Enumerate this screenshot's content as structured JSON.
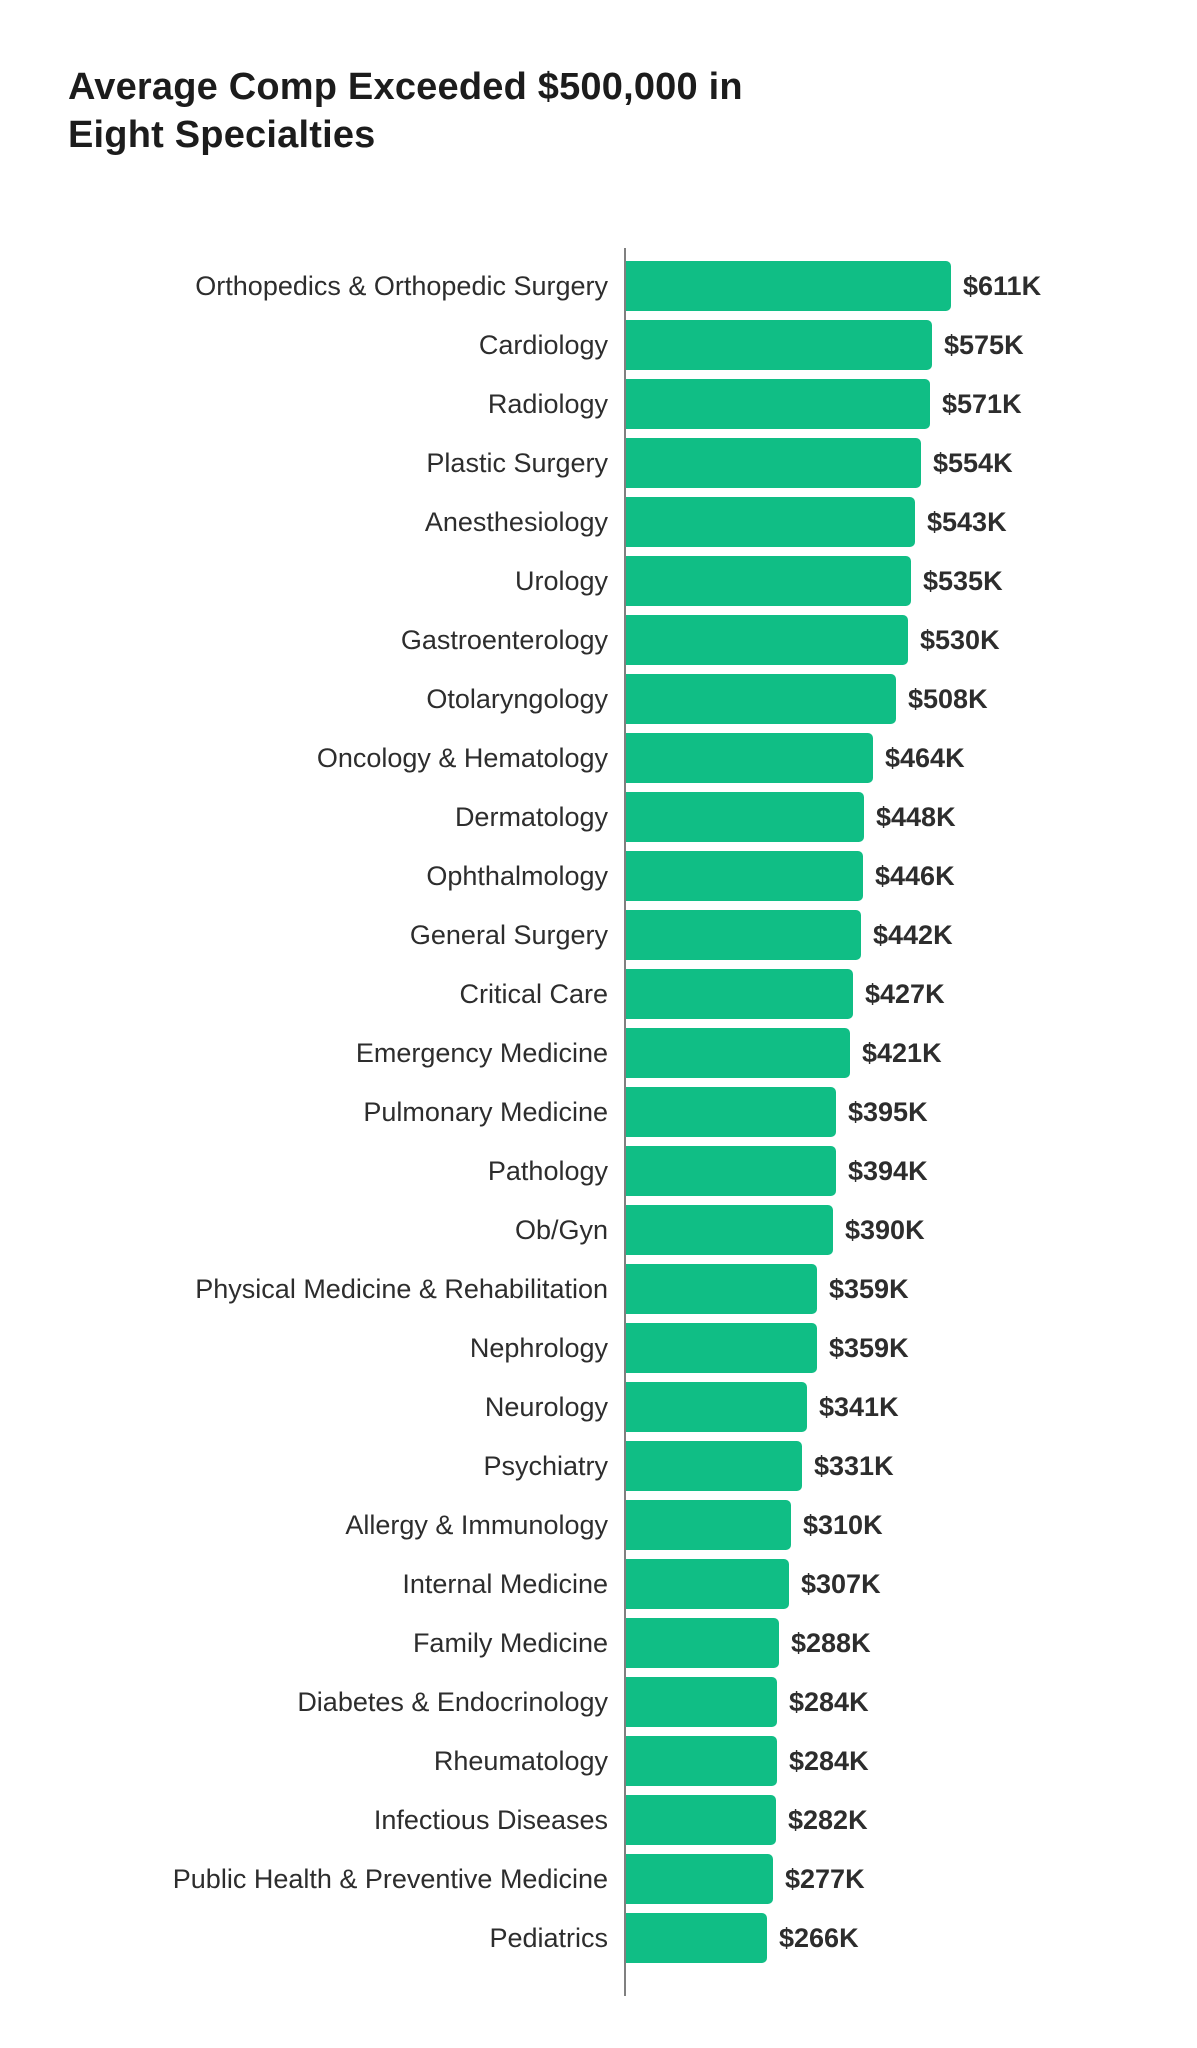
{
  "title": {
    "line1": "Average Comp Exceeded $500,000 in",
    "line2": "Eight Specialties"
  },
  "chart_data": {
    "type": "bar",
    "orientation": "horizontal",
    "title": "Average Comp Exceeded $500,000 in Eight Specialties",
    "unit": "USD thousands (K)",
    "bar_color": "#10BE85",
    "axis_color": "#808080",
    "value_axis_range": [
      0,
      611
    ],
    "grid": false,
    "legend": false,
    "categories": [
      "Orthopedics & Orthopedic Surgery",
      "Cardiology",
      "Radiology",
      "Plastic Surgery",
      "Anesthesiology",
      "Urology",
      "Gastroenterology",
      "Otolaryngology",
      "Oncology & Hematology",
      "Dermatology",
      "Ophthalmology",
      "General Surgery",
      "Critical Care",
      "Emergency Medicine",
      "Pulmonary Medicine",
      "Pathology",
      "Ob/Gyn",
      "Physical Medicine & Rehabilitation",
      "Nephrology",
      "Neurology",
      "Psychiatry",
      "Allergy & Immunology",
      "Internal Medicine",
      "Family Medicine",
      "Diabetes & Endocrinology",
      "Rheumatology",
      "Infectious Diseases",
      "Public Health & Preventive Medicine",
      "Pediatrics"
    ],
    "values": [
      611,
      575,
      571,
      554,
      543,
      535,
      530,
      508,
      464,
      448,
      446,
      442,
      427,
      421,
      395,
      394,
      390,
      359,
      359,
      341,
      331,
      310,
      307,
      288,
      284,
      284,
      282,
      277,
      266
    ],
    "value_labels": [
      "$611K",
      "$575K",
      "$571K",
      "$554K",
      "$543K",
      "$535K",
      "$530K",
      "$508K",
      "$464K",
      "$448K",
      "$446K",
      "$442K",
      "$427K",
      "$421K",
      "$395K",
      "$394K",
      "$390K",
      "$359K",
      "$359K",
      "$341K",
      "$331K",
      "$310K",
      "$307K",
      "$288K",
      "$284K",
      "$284K",
      "$282K",
      "$277K",
      "$266K"
    ]
  }
}
